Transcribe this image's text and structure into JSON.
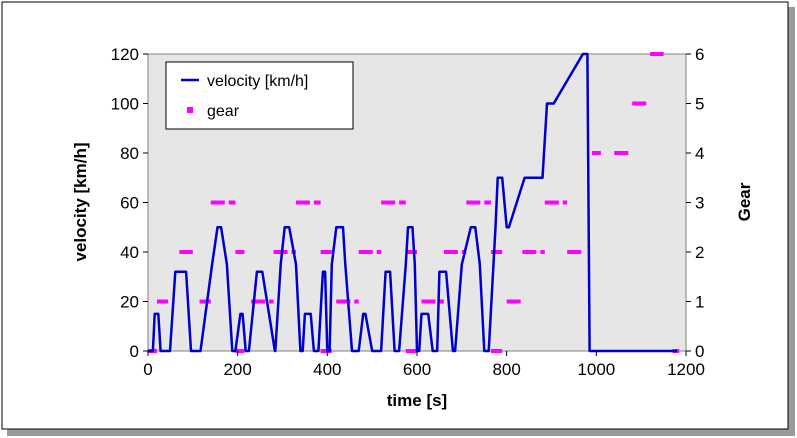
{
  "chart_data": {
    "type": "line",
    "title": "",
    "xlabel": "time [s]",
    "ylabel": "velocity [km/h]",
    "y2label": "Gear",
    "xlim": [
      0,
      1200
    ],
    "ylim": [
      0,
      120
    ],
    "y2lim": [
      0,
      6
    ],
    "xticks": [
      "0",
      "200",
      "400",
      "600",
      "800",
      "1000",
      "1200"
    ],
    "yticks": [
      "0",
      "20",
      "40",
      "60",
      "80",
      "100",
      "120"
    ],
    "y2ticks": [
      "0",
      "1",
      "2",
      "3",
      "4",
      "5",
      "6"
    ],
    "grid": false,
    "legend": "top-left",
    "background": "#e6e6e6",
    "series": [
      {
        "name": "velocity [km/h]",
        "color": "#0000cc",
        "axis": "left",
        "x": [
          0,
          11,
          15,
          23,
          28,
          49,
          61,
          85,
          96,
          117,
          143,
          155,
          163,
          176,
          188,
          195,
          206,
          211,
          218,
          225,
          243,
          255,
          283,
          284,
          296,
          305,
          315,
          330,
          340,
          345,
          350,
          363,
          370,
          380,
          390,
          395,
          400,
          405,
          410,
          420,
          435,
          440,
          455,
          470,
          480,
          485,
          500,
          520,
          530,
          540,
          550,
          560,
          575,
          580,
          590,
          595,
          600,
          605,
          610,
          625,
          635,
          645,
          650,
          665,
          680,
          685,
          700,
          720,
          730,
          740,
          750,
          760,
          775,
          780,
          790,
          800,
          805,
          840,
          880,
          890,
          905,
          970,
          980,
          985,
          1035,
          1050,
          1090,
          1110,
          1125,
          1150,
          1160,
          1170,
          1180
        ],
        "y": [
          0,
          0,
          15,
          15,
          0,
          0,
          32,
          32,
          0,
          0,
          35,
          50,
          50,
          35,
          0,
          0,
          15,
          15,
          0,
          0,
          32,
          32,
          0,
          0,
          35,
          50,
          50,
          35,
          0,
          0,
          15,
          15,
          0,
          0,
          32,
          32,
          0,
          0,
          35,
          50,
          50,
          35,
          0,
          0,
          15,
          15,
          0,
          0,
          32,
          32,
          0,
          0,
          35,
          50,
          50,
          35,
          0,
          0,
          15,
          15,
          0,
          0,
          32,
          32,
          0,
          0,
          35,
          50,
          50,
          35,
          0,
          0,
          50,
          70,
          70,
          50,
          50,
          70,
          70,
          100,
          100,
          120,
          120,
          0,
          0,
          0,
          0,
          0,
          0,
          0,
          0,
          0,
          0
        ]
      },
      {
        "name": "gear",
        "color": "#ff00ff",
        "axis": "right",
        "segments": [
          [
            20,
            45,
            1
          ],
          [
            70,
            100,
            2
          ],
          [
            115,
            140,
            1
          ],
          [
            140,
            195,
            3
          ],
          [
            195,
            215,
            2
          ],
          [
            230,
            280,
            1
          ],
          [
            280,
            330,
            2
          ],
          [
            330,
            385,
            3
          ],
          [
            385,
            410,
            2
          ],
          [
            420,
            470,
            1
          ],
          [
            470,
            520,
            2
          ],
          [
            520,
            575,
            3
          ],
          [
            575,
            600,
            2
          ],
          [
            610,
            660,
            1
          ],
          [
            660,
            710,
            2
          ],
          [
            710,
            765,
            3
          ],
          [
            765,
            790,
            2
          ],
          [
            800,
            835,
            1
          ],
          [
            835,
            885,
            2
          ],
          [
            885,
            935,
            3
          ],
          [
            935,
            975,
            2
          ],
          [
            990,
            1010,
            4
          ],
          [
            1040,
            1080,
            4
          ],
          [
            1080,
            1120,
            5
          ],
          [
            1120,
            1150,
            6
          ]
        ],
        "zero_segments": [
          [
            0,
            20
          ],
          [
            195,
            215
          ],
          [
            385,
            410
          ],
          [
            575,
            600
          ],
          [
            765,
            790
          ],
          [
            1170,
            1185
          ]
        ]
      }
    ]
  }
}
